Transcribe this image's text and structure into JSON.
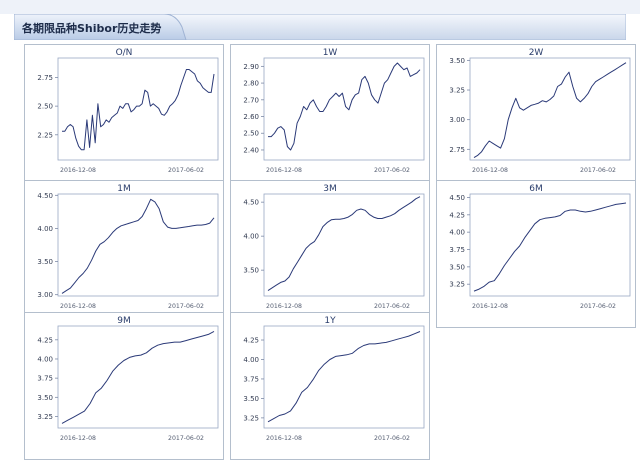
{
  "page": {
    "title": "各期限品种Shibor历史走势"
  },
  "chart_data": [
    {
      "type": "line",
      "title": "O/N",
      "x_ticks": [
        "2016-12-08",
        "2017-06-02"
      ],
      "yticks": [
        2.25,
        2.5,
        2.75
      ],
      "ylim": [
        2.03,
        2.92
      ],
      "series": [
        {
          "values": [
            2.28,
            2.28,
            2.32,
            2.34,
            2.32,
            2.22,
            2.15,
            2.12,
            2.12,
            2.38,
            2.14,
            2.42,
            2.18,
            2.52,
            2.32,
            2.34,
            2.38,
            2.36,
            2.4,
            2.42,
            2.44,
            2.5,
            2.48,
            2.52,
            2.52,
            2.45,
            2.47,
            2.5,
            2.5,
            2.52,
            2.64,
            2.62,
            2.5,
            2.52,
            2.5,
            2.48,
            2.43,
            2.42,
            2.45,
            2.5,
            2.52,
            2.55,
            2.6,
            2.68,
            2.75,
            2.82,
            2.82,
            2.8,
            2.78,
            2.72,
            2.7,
            2.66,
            2.64,
            2.62,
            2.62,
            2.78
          ]
        }
      ]
    },
    {
      "type": "line",
      "title": "1W",
      "x_ticks": [
        "2016-12-08",
        "2017-06-02"
      ],
      "yticks": [
        2.4,
        2.5,
        2.6,
        2.7,
        2.8,
        2.9
      ],
      "ylim": [
        2.34,
        2.95
      ],
      "series": [
        {
          "values": [
            2.48,
            2.48,
            2.5,
            2.53,
            2.54,
            2.52,
            2.42,
            2.4,
            2.44,
            2.56,
            2.6,
            2.66,
            2.64,
            2.68,
            2.7,
            2.66,
            2.63,
            2.63,
            2.66,
            2.7,
            2.72,
            2.74,
            2.72,
            2.74,
            2.66,
            2.64,
            2.7,
            2.73,
            2.74,
            2.82,
            2.84,
            2.8,
            2.73,
            2.7,
            2.68,
            2.74,
            2.8,
            2.82,
            2.86,
            2.9,
            2.92,
            2.9,
            2.88,
            2.89,
            2.84,
            2.85,
            2.86,
            2.88
          ]
        }
      ]
    },
    {
      "type": "line",
      "title": "2W",
      "x_ticks": [
        "2016-12-08",
        "2017-06-02"
      ],
      "yticks": [
        2.75,
        3.0,
        3.25,
        3.5
      ],
      "ylim": [
        2.66,
        3.52
      ],
      "series": [
        {
          "values": [
            2.68,
            2.7,
            2.73,
            2.78,
            2.82,
            2.8,
            2.78,
            2.76,
            2.84,
            3.0,
            3.1,
            3.18,
            3.1,
            3.08,
            3.1,
            3.12,
            3.13,
            3.14,
            3.16,
            3.15,
            3.17,
            3.2,
            3.28,
            3.3,
            3.36,
            3.4,
            3.28,
            3.18,
            3.15,
            3.18,
            3.22,
            3.28,
            3.32,
            3.34,
            3.36,
            3.38,
            3.4,
            3.42,
            3.44,
            3.46,
            3.48
          ]
        }
      ]
    },
    {
      "type": "line",
      "title": "1M",
      "x_ticks": [
        "2016-12-08",
        "2017-06-02"
      ],
      "yticks": [
        3.0,
        3.5,
        4.0,
        4.5
      ],
      "ylim": [
        2.98,
        4.52
      ],
      "series": [
        {
          "values": [
            3.02,
            3.06,
            3.1,
            3.18,
            3.26,
            3.32,
            3.4,
            3.52,
            3.66,
            3.76,
            3.8,
            3.86,
            3.94,
            4.0,
            4.04,
            4.06,
            4.08,
            4.1,
            4.12,
            4.18,
            4.3,
            4.44,
            4.4,
            4.3,
            4.1,
            4.02,
            4.0,
            4.0,
            4.01,
            4.02,
            4.03,
            4.04,
            4.05,
            4.05,
            4.06,
            4.08,
            4.16
          ]
        }
      ]
    },
    {
      "type": "line",
      "title": "3M",
      "x_ticks": [
        "2016-12-08",
        "2017-06-02"
      ],
      "yticks": [
        3.5,
        4.0,
        4.5
      ],
      "ylim": [
        3.12,
        4.62
      ],
      "series": [
        {
          "values": [
            3.2,
            3.24,
            3.28,
            3.32,
            3.34,
            3.4,
            3.52,
            3.62,
            3.72,
            3.82,
            3.88,
            3.92,
            4.02,
            4.14,
            4.2,
            4.24,
            4.25,
            4.25,
            4.26,
            4.28,
            4.32,
            4.38,
            4.4,
            4.38,
            4.32,
            4.28,
            4.26,
            4.26,
            4.28,
            4.3,
            4.33,
            4.38,
            4.42,
            4.46,
            4.5,
            4.55,
            4.58
          ]
        }
      ]
    },
    {
      "type": "line",
      "title": "6M",
      "x_ticks": [
        "2016-12-08",
        "2017-06-02"
      ],
      "yticks": [
        3.25,
        3.5,
        3.75,
        4.0,
        4.25,
        4.5
      ],
      "ylim": [
        3.08,
        4.55
      ],
      "series": [
        {
          "values": [
            3.15,
            3.18,
            3.22,
            3.28,
            3.3,
            3.4,
            3.52,
            3.62,
            3.72,
            3.8,
            3.92,
            4.02,
            4.12,
            4.18,
            4.2,
            4.21,
            4.22,
            4.24,
            4.3,
            4.32,
            4.32,
            4.3,
            4.29,
            4.3,
            4.32,
            4.34,
            4.36,
            4.38,
            4.4,
            4.41,
            4.42
          ]
        }
      ]
    },
    {
      "type": "line",
      "title": "9M",
      "x_ticks": [
        "2016-12-08",
        "2017-06-02"
      ],
      "yticks": [
        3.25,
        3.5,
        3.75,
        4.0,
        4.25
      ],
      "ylim": [
        3.1,
        4.43
      ],
      "series": [
        {
          "values": [
            3.16,
            3.2,
            3.24,
            3.28,
            3.32,
            3.42,
            3.56,
            3.62,
            3.72,
            3.84,
            3.92,
            3.98,
            4.02,
            4.04,
            4.05,
            4.08,
            4.14,
            4.18,
            4.2,
            4.21,
            4.22,
            4.22,
            4.24,
            4.26,
            4.28,
            4.3,
            4.32,
            4.36
          ]
        }
      ]
    },
    {
      "type": "line",
      "title": "1Y",
      "x_ticks": [
        "2016-12-08",
        "2017-06-02"
      ],
      "yticks": [
        3.25,
        3.5,
        3.75,
        4.0,
        4.25
      ],
      "ylim": [
        3.12,
        4.43
      ],
      "series": [
        {
          "values": [
            3.2,
            3.24,
            3.28,
            3.3,
            3.34,
            3.44,
            3.58,
            3.64,
            3.74,
            3.86,
            3.94,
            4.0,
            4.04,
            4.05,
            4.06,
            4.08,
            4.14,
            4.18,
            4.2,
            4.2,
            4.21,
            4.22,
            4.24,
            4.26,
            4.28,
            4.3,
            4.33,
            4.36
          ]
        }
      ]
    }
  ]
}
